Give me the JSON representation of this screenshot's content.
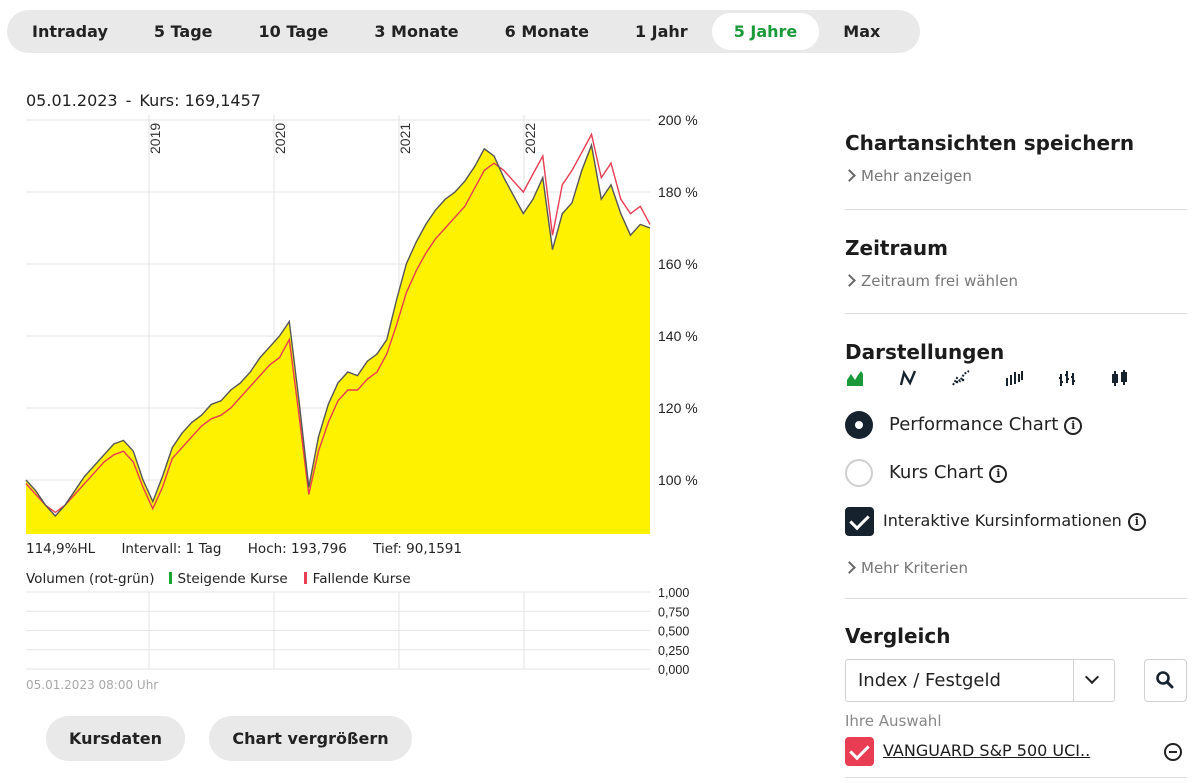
{
  "tabs": [
    {
      "label": "Intraday",
      "active": false
    },
    {
      "label": "5 Tage",
      "active": false
    },
    {
      "label": "10 Tage",
      "active": false
    },
    {
      "label": "3 Monate",
      "active": false
    },
    {
      "label": "6 Monate",
      "active": false
    },
    {
      "label": "1 Jahr",
      "active": false
    },
    {
      "label": "5 Jahre",
      "active": true
    },
    {
      "label": "Max",
      "active": false
    }
  ],
  "info": {
    "date": "05.01.2023",
    "separator": "-",
    "price": "Kurs: 169,1457"
  },
  "stats": {
    "hl": "114,9%HL",
    "interval": "Intervall: 1 Tag",
    "high": "Hoch: 193,796",
    "low": "Tief: 90,1591"
  },
  "volume": {
    "label": "Volumen (rot-grün)",
    "rising": "Steigende Kurse",
    "falling": "Fallende Kurse",
    "rising_color": "#1aa531",
    "falling_color": "#e83d52",
    "timestamp": "05.01.2023 08:00 Uhr"
  },
  "buttons": {
    "kursdaten": "Kursdaten",
    "enlarge": "Chart vergrößern"
  },
  "sidebar": {
    "save_title": "Chartansichten speichern",
    "save_more": "Mehr anzeigen",
    "period_title": "Zeitraum",
    "period_more": "Zeitraum frei wählen",
    "display_title": "Darstellungen",
    "display_icons": [
      "mountain-chart-icon",
      "line-chart-icon",
      "dotted-line-chart-icon",
      "bar-chart-icon",
      "ohlc-chart-icon",
      "candlestick-chart-icon"
    ],
    "opt_performance": "Performance Chart",
    "opt_kurs": "Kurs Chart",
    "opt_interactive": "Interaktive Kursinformationen",
    "more_criteria": "Mehr Kriterien",
    "compare_title": "Vergleich",
    "compare_select": "Index / Festgeld",
    "your_selection": "Ihre Auswahl",
    "compare_item": "VANGUARD S&P 500 UCI.."
  },
  "chart_data": {
    "type": "area",
    "x_labels": [
      "2019",
      "2020",
      "2021",
      "2022"
    ],
    "y_ticks": [
      "200 %",
      "180 %",
      "160 %",
      "140 %",
      "120 %",
      "100 %"
    ],
    "ylim": [
      85,
      200
    ],
    "volume_ticks": [
      "1,000",
      "0,750",
      "0,500",
      "0,250",
      "0,000"
    ],
    "fill_color": "#fff200",
    "line_color": "#555555",
    "compare_color": "#e83d52",
    "series": [
      {
        "values": [
          100,
          97,
          93,
          90,
          93,
          97,
          101,
          104,
          107,
          110,
          111,
          108,
          100,
          94,
          101,
          109,
          113,
          116,
          118,
          121,
          122,
          125,
          127,
          130,
          134,
          137,
          140,
          144,
          122,
          98,
          112,
          121,
          127,
          130,
          129,
          133,
          135,
          139,
          150,
          160,
          166,
          171,
          175,
          178,
          180,
          183,
          187,
          192,
          190,
          184,
          179,
          174,
          178,
          184,
          164,
          174,
          177,
          186,
          193,
          178,
          182,
          174,
          168,
          171,
          170
        ]
      },
      {
        "name": "VANGUARD S&P 500 UCI..",
        "values": [
          99,
          96,
          93,
          91,
          93,
          96,
          99,
          102,
          105,
          107,
          108,
          105,
          98,
          92,
          98,
          106,
          109,
          112,
          115,
          117,
          118,
          120,
          123,
          126,
          129,
          132,
          134,
          139,
          118,
          96,
          108,
          116,
          122,
          125,
          125,
          128,
          130,
          135,
          143,
          152,
          158,
          163,
          167,
          170,
          173,
          176,
          181,
          186,
          188,
          186,
          183,
          180,
          185,
          190,
          168,
          182,
          186,
          191,
          196,
          184,
          188,
          178,
          174,
          176,
          171
        ]
      }
    ]
  }
}
